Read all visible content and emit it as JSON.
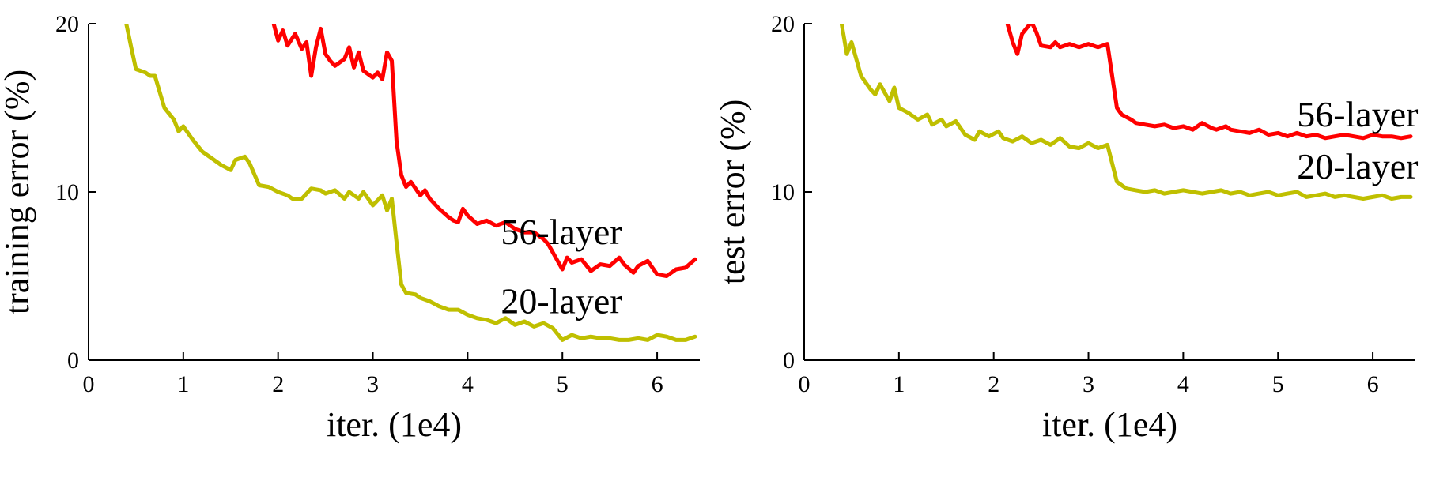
{
  "figure": {
    "background": "#ffffff",
    "axis_color": "#000000"
  },
  "chart_data": [
    {
      "type": "line",
      "name": "training-error",
      "xlabel": "iter. (1e4)",
      "ylabel": "training error (%)",
      "xlim": [
        0,
        6.45
      ],
      "ylim": [
        0,
        20
      ],
      "xticks": [
        0,
        1,
        2,
        3,
        4,
        5,
        6
      ],
      "yticks": [
        0,
        10,
        20
      ],
      "grid": false,
      "legend_position": "none",
      "series": [
        {
          "name": "56-layer",
          "color": "#ff0000",
          "points": [
            [
              1.93,
              20.5
            ],
            [
              2.0,
              19.0
            ],
            [
              2.05,
              19.6
            ],
            [
              2.1,
              18.7
            ],
            [
              2.18,
              19.4
            ],
            [
              2.25,
              18.5
            ],
            [
              2.3,
              18.9
            ],
            [
              2.35,
              16.9
            ],
            [
              2.4,
              18.6
            ],
            [
              2.45,
              19.7
            ],
            [
              2.5,
              18.2
            ],
            [
              2.55,
              17.8
            ],
            [
              2.6,
              17.5
            ],
            [
              2.7,
              17.9
            ],
            [
              2.75,
              18.6
            ],
            [
              2.8,
              17.4
            ],
            [
              2.85,
              18.3
            ],
            [
              2.9,
              17.2
            ],
            [
              3.0,
              16.8
            ],
            [
              3.05,
              17.1
            ],
            [
              3.1,
              16.7
            ],
            [
              3.15,
              18.3
            ],
            [
              3.2,
              17.8
            ],
            [
              3.25,
              13.0
            ],
            [
              3.3,
              11.0
            ],
            [
              3.35,
              10.3
            ],
            [
              3.4,
              10.6
            ],
            [
              3.5,
              9.8
            ],
            [
              3.55,
              10.1
            ],
            [
              3.6,
              9.6
            ],
            [
              3.7,
              9.0
            ],
            [
              3.8,
              8.5
            ],
            [
              3.85,
              8.3
            ],
            [
              3.9,
              8.2
            ],
            [
              3.95,
              9.0
            ],
            [
              4.0,
              8.6
            ],
            [
              4.1,
              8.1
            ],
            [
              4.2,
              8.3
            ],
            [
              4.3,
              8.0
            ],
            [
              4.4,
              8.2
            ],
            [
              4.5,
              7.8
            ],
            [
              4.6,
              7.6
            ],
            [
              4.7,
              7.6
            ],
            [
              4.8,
              7.2
            ],
            [
              4.85,
              6.9
            ],
            [
              4.95,
              5.9
            ],
            [
              5.0,
              5.4
            ],
            [
              5.05,
              6.1
            ],
            [
              5.1,
              5.8
            ],
            [
              5.2,
              6.0
            ],
            [
              5.3,
              5.3
            ],
            [
              5.4,
              5.7
            ],
            [
              5.5,
              5.6
            ],
            [
              5.6,
              6.1
            ],
            [
              5.65,
              5.7
            ],
            [
              5.75,
              5.2
            ],
            [
              5.8,
              5.6
            ],
            [
              5.9,
              5.9
            ],
            [
              6.0,
              5.1
            ],
            [
              6.1,
              5.0
            ],
            [
              6.2,
              5.4
            ],
            [
              6.3,
              5.5
            ],
            [
              6.4,
              6.0
            ]
          ]
        },
        {
          "name": "20-layer",
          "color": "#bfbf00",
          "points": [
            [
              0.38,
              20.5
            ],
            [
              0.45,
              18.6
            ],
            [
              0.5,
              17.3
            ],
            [
              0.6,
              17.1
            ],
            [
              0.65,
              16.9
            ],
            [
              0.7,
              16.9
            ],
            [
              0.8,
              15.0
            ],
            [
              0.9,
              14.3
            ],
            [
              0.95,
              13.6
            ],
            [
              1.0,
              13.9
            ],
            [
              1.1,
              13.1
            ],
            [
              1.2,
              12.4
            ],
            [
              1.3,
              12.0
            ],
            [
              1.4,
              11.6
            ],
            [
              1.5,
              11.3
            ],
            [
              1.55,
              11.9
            ],
            [
              1.65,
              12.1
            ],
            [
              1.7,
              11.7
            ],
            [
              1.8,
              10.4
            ],
            [
              1.9,
              10.3
            ],
            [
              2.0,
              10.0
            ],
            [
              2.1,
              9.8
            ],
            [
              2.15,
              9.6
            ],
            [
              2.25,
              9.6
            ],
            [
              2.35,
              10.2
            ],
            [
              2.45,
              10.1
            ],
            [
              2.5,
              9.9
            ],
            [
              2.6,
              10.1
            ],
            [
              2.7,
              9.6
            ],
            [
              2.75,
              10.0
            ],
            [
              2.85,
              9.6
            ],
            [
              2.9,
              10.0
            ],
            [
              3.0,
              9.2
            ],
            [
              3.1,
              9.8
            ],
            [
              3.15,
              8.9
            ],
            [
              3.2,
              9.6
            ],
            [
              3.25,
              7.0
            ],
            [
              3.3,
              4.5
            ],
            [
              3.35,
              4.0
            ],
            [
              3.45,
              3.9
            ],
            [
              3.5,
              3.7
            ],
            [
              3.6,
              3.5
            ],
            [
              3.7,
              3.2
            ],
            [
              3.8,
              3.0
            ],
            [
              3.9,
              3.0
            ],
            [
              4.0,
              2.7
            ],
            [
              4.1,
              2.5
            ],
            [
              4.2,
              2.4
            ],
            [
              4.3,
              2.2
            ],
            [
              4.4,
              2.5
            ],
            [
              4.5,
              2.1
            ],
            [
              4.6,
              2.3
            ],
            [
              4.7,
              2.0
            ],
            [
              4.8,
              2.2
            ],
            [
              4.9,
              1.9
            ],
            [
              5.0,
              1.2
            ],
            [
              5.1,
              1.5
            ],
            [
              5.2,
              1.3
            ],
            [
              5.3,
              1.4
            ],
            [
              5.4,
              1.3
            ],
            [
              5.5,
              1.3
            ],
            [
              5.6,
              1.2
            ],
            [
              5.7,
              1.2
            ],
            [
              5.8,
              1.3
            ],
            [
              5.9,
              1.2
            ],
            [
              6.0,
              1.5
            ],
            [
              6.1,
              1.4
            ],
            [
              6.2,
              1.2
            ],
            [
              6.3,
              1.2
            ],
            [
              6.4,
              1.4
            ]
          ]
        }
      ],
      "annotations": [
        {
          "text": "56-layer",
          "x": 4.35,
          "y": 6.9
        },
        {
          "text": "20-layer",
          "x": 4.35,
          "y": 2.8
        }
      ]
    },
    {
      "type": "line",
      "name": "test-error",
      "xlabel": "iter. (1e4)",
      "ylabel": "test error (%)",
      "xlim": [
        0,
        6.45
      ],
      "ylim": [
        0,
        20
      ],
      "xticks": [
        0,
        1,
        2,
        3,
        4,
        5,
        6
      ],
      "yticks": [
        0,
        10,
        20
      ],
      "grid": false,
      "legend_position": "none",
      "series": [
        {
          "name": "56-layer",
          "color": "#ff0000",
          "points": [
            [
              2.12,
              20.5
            ],
            [
              2.2,
              18.9
            ],
            [
              2.25,
              18.2
            ],
            [
              2.3,
              19.4
            ],
            [
              2.4,
              20.1
            ],
            [
              2.45,
              19.5
            ],
            [
              2.5,
              18.7
            ],
            [
              2.6,
              18.6
            ],
            [
              2.65,
              18.9
            ],
            [
              2.7,
              18.6
            ],
            [
              2.8,
              18.8
            ],
            [
              2.9,
              18.6
            ],
            [
              3.0,
              18.8
            ],
            [
              3.1,
              18.6
            ],
            [
              3.2,
              18.8
            ],
            [
              3.3,
              15.0
            ],
            [
              3.35,
              14.6
            ],
            [
              3.45,
              14.3
            ],
            [
              3.5,
              14.1
            ],
            [
              3.6,
              14.0
            ],
            [
              3.7,
              13.9
            ],
            [
              3.8,
              14.0
            ],
            [
              3.9,
              13.8
            ],
            [
              4.0,
              13.9
            ],
            [
              4.1,
              13.7
            ],
            [
              4.2,
              14.1
            ],
            [
              4.3,
              13.8
            ],
            [
              4.35,
              13.7
            ],
            [
              4.45,
              13.9
            ],
            [
              4.5,
              13.7
            ],
            [
              4.6,
              13.6
            ],
            [
              4.7,
              13.5
            ],
            [
              4.8,
              13.7
            ],
            [
              4.9,
              13.4
            ],
            [
              5.0,
              13.5
            ],
            [
              5.1,
              13.3
            ],
            [
              5.2,
              13.5
            ],
            [
              5.3,
              13.3
            ],
            [
              5.4,
              13.4
            ],
            [
              5.5,
              13.2
            ],
            [
              5.6,
              13.3
            ],
            [
              5.7,
              13.4
            ],
            [
              5.8,
              13.3
            ],
            [
              5.9,
              13.2
            ],
            [
              6.0,
              13.4
            ],
            [
              6.1,
              13.3
            ],
            [
              6.2,
              13.3
            ],
            [
              6.3,
              13.2
            ],
            [
              6.4,
              13.3
            ]
          ]
        },
        {
          "name": "20-layer",
          "color": "#bfbf00",
          "points": [
            [
              0.38,
              20.5
            ],
            [
              0.45,
              18.2
            ],
            [
              0.5,
              18.9
            ],
            [
              0.6,
              16.9
            ],
            [
              0.7,
              16.1
            ],
            [
              0.75,
              15.8
            ],
            [
              0.8,
              16.4
            ],
            [
              0.9,
              15.4
            ],
            [
              0.95,
              16.2
            ],
            [
              1.0,
              15.0
            ],
            [
              1.1,
              14.7
            ],
            [
              1.2,
              14.3
            ],
            [
              1.3,
              14.6
            ],
            [
              1.35,
              14.0
            ],
            [
              1.45,
              14.3
            ],
            [
              1.5,
              13.9
            ],
            [
              1.6,
              14.2
            ],
            [
              1.7,
              13.4
            ],
            [
              1.8,
              13.1
            ],
            [
              1.85,
              13.6
            ],
            [
              1.95,
              13.3
            ],
            [
              2.05,
              13.6
            ],
            [
              2.1,
              13.2
            ],
            [
              2.2,
              13.0
            ],
            [
              2.3,
              13.3
            ],
            [
              2.4,
              12.9
            ],
            [
              2.5,
              13.1
            ],
            [
              2.6,
              12.8
            ],
            [
              2.7,
              13.2
            ],
            [
              2.8,
              12.7
            ],
            [
              2.9,
              12.6
            ],
            [
              3.0,
              12.9
            ],
            [
              3.1,
              12.6
            ],
            [
              3.2,
              12.8
            ],
            [
              3.3,
              10.6
            ],
            [
              3.4,
              10.2
            ],
            [
              3.5,
              10.1
            ],
            [
              3.6,
              10.0
            ],
            [
              3.7,
              10.1
            ],
            [
              3.8,
              9.9
            ],
            [
              3.9,
              10.0
            ],
            [
              4.0,
              10.1
            ],
            [
              4.1,
              10.0
            ],
            [
              4.2,
              9.9
            ],
            [
              4.3,
              10.0
            ],
            [
              4.4,
              10.1
            ],
            [
              4.5,
              9.9
            ],
            [
              4.6,
              10.0
            ],
            [
              4.7,
              9.8
            ],
            [
              4.8,
              9.9
            ],
            [
              4.9,
              10.0
            ],
            [
              5.0,
              9.8
            ],
            [
              5.1,
              9.9
            ],
            [
              5.2,
              10.0
            ],
            [
              5.3,
              9.7
            ],
            [
              5.4,
              9.8
            ],
            [
              5.5,
              9.9
            ],
            [
              5.6,
              9.7
            ],
            [
              5.7,
              9.8
            ],
            [
              5.8,
              9.7
            ],
            [
              5.9,
              9.6
            ],
            [
              6.0,
              9.7
            ],
            [
              6.1,
              9.8
            ],
            [
              6.2,
              9.6
            ],
            [
              6.3,
              9.7
            ],
            [
              6.4,
              9.7
            ]
          ]
        }
      ],
      "annotations": [
        {
          "text": "56-layer",
          "x": 5.2,
          "y": 13.9
        },
        {
          "text": "20-layer",
          "x": 5.2,
          "y": 10.8
        }
      ]
    }
  ]
}
